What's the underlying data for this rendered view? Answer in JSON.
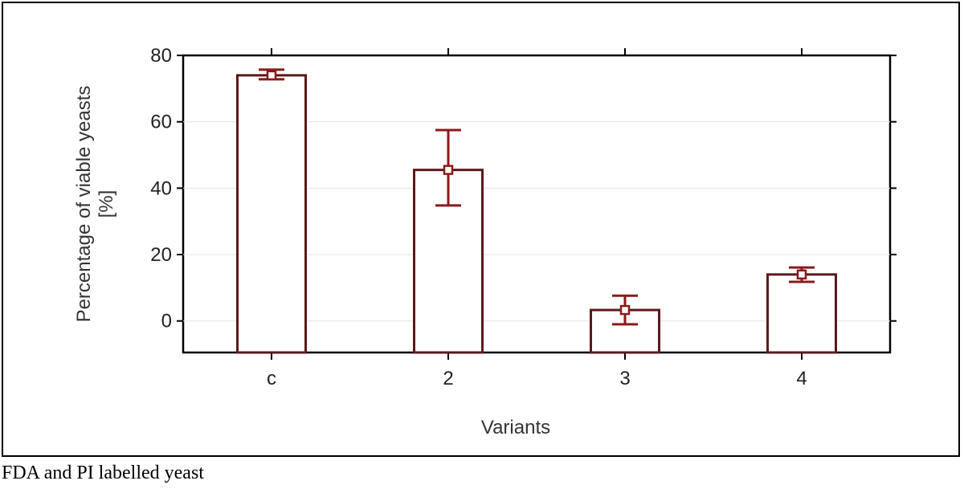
{
  "caption": "FDA and PI labelled yeast",
  "chart_data": {
    "type": "bar",
    "categories": [
      "c",
      "2",
      "3",
      "4"
    ],
    "values": [
      74,
      45.5,
      3.3,
      14
    ],
    "error_low": [
      72.8,
      34.8,
      -1,
      11.8
    ],
    "error_high": [
      75.7,
      57.5,
      7.6,
      16.1
    ],
    "xlabel": "Variants",
    "ylabel_lines": [
      "Percentage of viable yeasts",
      "[%]"
    ],
    "ylim": [
      -9.5,
      80
    ],
    "yticks": [
      0,
      20,
      40,
      60,
      80
    ],
    "grid": true,
    "bar_fill": "#ffffff",
    "bar_stroke": "#5a1a1a",
    "error_color": "#8b1a1a"
  }
}
